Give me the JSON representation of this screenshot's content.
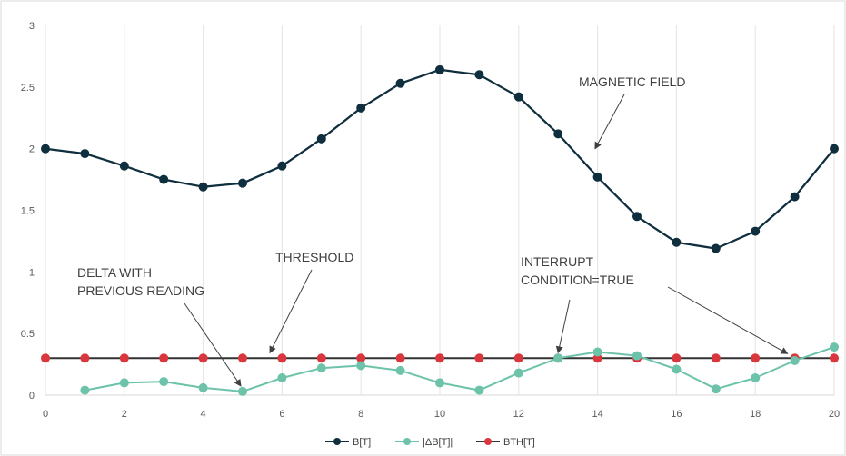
{
  "chart_data": {
    "type": "line",
    "title": "",
    "xlabel": "",
    "ylabel": "",
    "xlim": [
      0,
      20
    ],
    "ylim": [
      0,
      3
    ],
    "x_ticks": [
      "0",
      "2",
      "4",
      "6",
      "8",
      "10",
      "12",
      "14",
      "16",
      "18",
      "20"
    ],
    "y_ticks": [
      "0",
      "0.5",
      "1",
      "1.5",
      "2",
      "2.5",
      "3"
    ],
    "grid": "vertical",
    "legend_position": "bottom",
    "series": [
      {
        "name": "B[T]",
        "color": "#0f2e3e",
        "x": [
          0,
          1,
          2,
          3,
          4,
          5,
          6,
          7,
          8,
          9,
          10,
          11,
          12,
          13,
          14,
          15,
          16,
          17,
          18,
          19,
          20
        ],
        "values": [
          2.0,
          1.96,
          1.86,
          1.75,
          1.69,
          1.72,
          1.86,
          2.08,
          2.33,
          2.53,
          2.64,
          2.6,
          2.42,
          2.12,
          1.77,
          1.45,
          1.24,
          1.19,
          1.33,
          1.61,
          2.0
        ]
      },
      {
        "name": "|ΔB[T]|",
        "color": "#6cc3aa",
        "x": [
          1,
          2,
          3,
          4,
          5,
          6,
          7,
          8,
          9,
          10,
          11,
          12,
          13,
          14,
          15,
          16,
          17,
          18,
          19,
          20
        ],
        "values": [
          0.04,
          0.1,
          0.11,
          0.06,
          0.03,
          0.14,
          0.22,
          0.24,
          0.2,
          0.1,
          0.04,
          0.18,
          0.3,
          0.35,
          0.32,
          0.21,
          0.05,
          0.14,
          0.28,
          0.39
        ]
      },
      {
        "name": "BTH[T]",
        "color": "#d9373d",
        "x": [
          0,
          1,
          2,
          3,
          4,
          5,
          6,
          7,
          8,
          9,
          10,
          11,
          12,
          13,
          14,
          15,
          16,
          17,
          18,
          19,
          20
        ],
        "values": [
          0.3,
          0.3,
          0.3,
          0.3,
          0.3,
          0.3,
          0.3,
          0.3,
          0.3,
          0.3,
          0.3,
          0.3,
          0.3,
          0.3,
          0.3,
          0.3,
          0.3,
          0.3,
          0.3,
          0.3,
          0.3
        ]
      }
    ],
    "annotations": {
      "magnetic_field": {
        "lines": [
          "MAGNETIC FIELD"
        ],
        "target": [
          13.8,
          2.0
        ]
      },
      "threshold": {
        "lines": [
          "THRESHOLD"
        ],
        "target": [
          5.6,
          0.3
        ]
      },
      "delta": {
        "lines": [
          "DELTA WITH",
          "PREVIOUS READING"
        ],
        "target": [
          5.0,
          0.03
        ]
      },
      "interrupt": {
        "lines": [
          "INTERRUPT",
          "CONDITION=TRUE"
        ],
        "targets": [
          [
            13.0,
            0.3
          ],
          [
            19.0,
            0.3
          ]
        ]
      }
    }
  }
}
